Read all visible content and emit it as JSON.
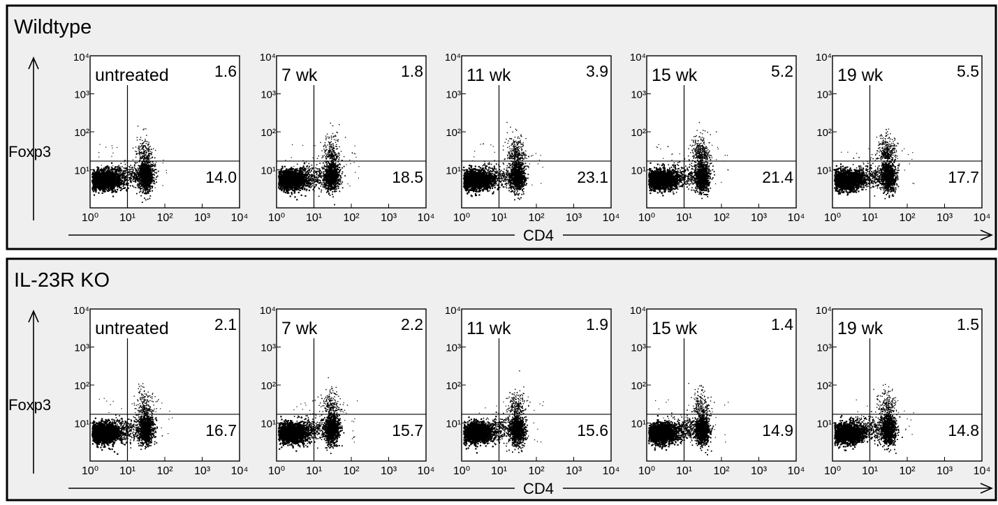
{
  "chart_data": [
    {
      "type": "scatter",
      "title": "Wildtype",
      "xlabel": "CD4",
      "ylabel": "Foxp3",
      "axis_scale": "log",
      "xlim": [
        1,
        10000
      ],
      "ylim": [
        1,
        10000
      ],
      "x_tick_labels": [
        "10⁰",
        "10¹",
        "10²",
        "10³",
        "10⁴"
      ],
      "y_tick_labels": [
        "10¹",
        "10²",
        "10³",
        "10⁴"
      ],
      "quadrant_gate": {
        "x": 10,
        "y": 17
      },
      "panels": [
        {
          "label": "untreated",
          "upper_right_pct": "1.6",
          "lower_right_pct": "14.0"
        },
        {
          "label": "7 wk",
          "upper_right_pct": "1.8",
          "lower_right_pct": "18.5"
        },
        {
          "label": "11 wk",
          "upper_right_pct": "3.9",
          "lower_right_pct": "23.1"
        },
        {
          "label": "15 wk",
          "upper_right_pct": "5.2",
          "lower_right_pct": "21.4"
        },
        {
          "label": "19 wk",
          "upper_right_pct": "5.5",
          "lower_right_pct": "17.7"
        }
      ]
    },
    {
      "type": "scatter",
      "title": "IL-23R KO",
      "xlabel": "CD4",
      "ylabel": "Foxp3",
      "axis_scale": "log",
      "xlim": [
        1,
        10000
      ],
      "ylim": [
        1,
        10000
      ],
      "x_tick_labels": [
        "10⁰",
        "10¹",
        "10²",
        "10³",
        "10⁴"
      ],
      "y_tick_labels": [
        "10¹",
        "10²",
        "10³",
        "10⁴"
      ],
      "quadrant_gate": {
        "x": 10,
        "y": 17
      },
      "panels": [
        {
          "label": "untreated",
          "upper_right_pct": "2.1",
          "lower_right_pct": "16.7"
        },
        {
          "label": "7 wk",
          "upper_right_pct": "2.2",
          "lower_right_pct": "15.7"
        },
        {
          "label": "11 wk",
          "upper_right_pct": "1.9",
          "lower_right_pct": "15.6"
        },
        {
          "label": "15 wk",
          "upper_right_pct": "1.4",
          "lower_right_pct": "14.9"
        },
        {
          "label": "19 wk",
          "upper_right_pct": "1.5",
          "lower_right_pct": "14.8"
        }
      ]
    }
  ],
  "colors": {
    "background": "#efefef",
    "ink": "#000000"
  }
}
